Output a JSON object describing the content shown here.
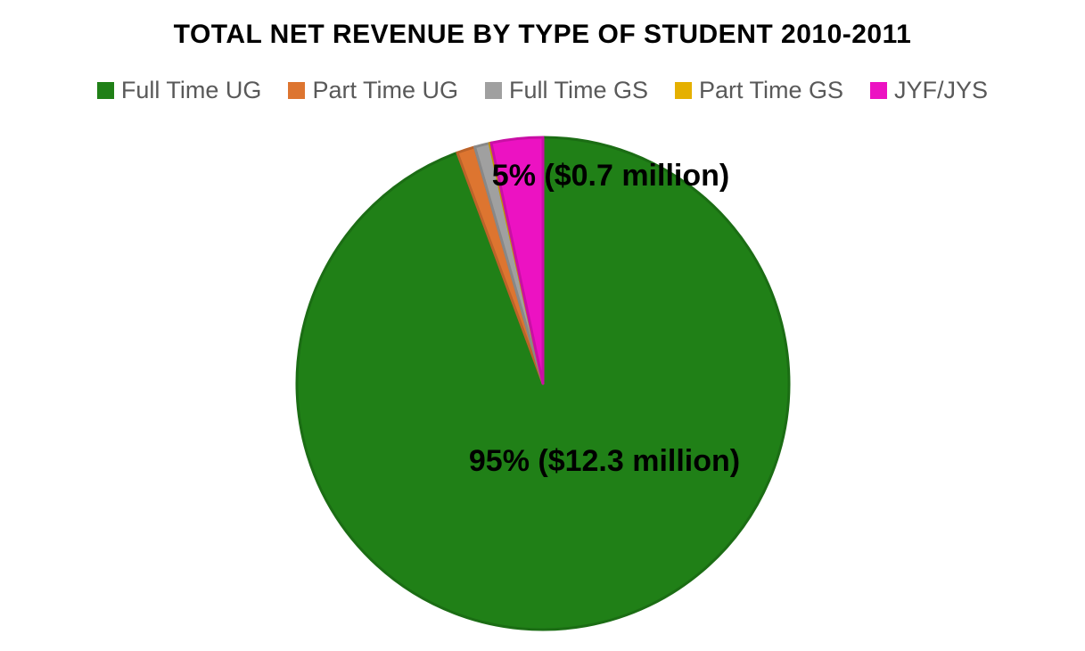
{
  "chart_data": {
    "type": "pie",
    "title": "TOTAL NET REVENUE BY TYPE OF STUDENT 2010-2011",
    "legend_position": "top",
    "slices": [
      {
        "name": "Full Time UG",
        "value": 95.0,
        "color": "#208017"
      },
      {
        "name": "Part Time UG",
        "value": 1.2,
        "color": "#dd7530"
      },
      {
        "name": "Full Time GS",
        "value": 1.0,
        "color": "#a0a0a0"
      },
      {
        "name": "Part Time GS",
        "value": 0.1,
        "color": "#e5b000"
      },
      {
        "name": "JYF/JYS",
        "value": 3.4,
        "color": "#ec12c2"
      }
    ],
    "data_labels": [
      {
        "text": "5% ($0.7 million)"
      },
      {
        "text": "95% ($12.3 million)"
      }
    ]
  }
}
